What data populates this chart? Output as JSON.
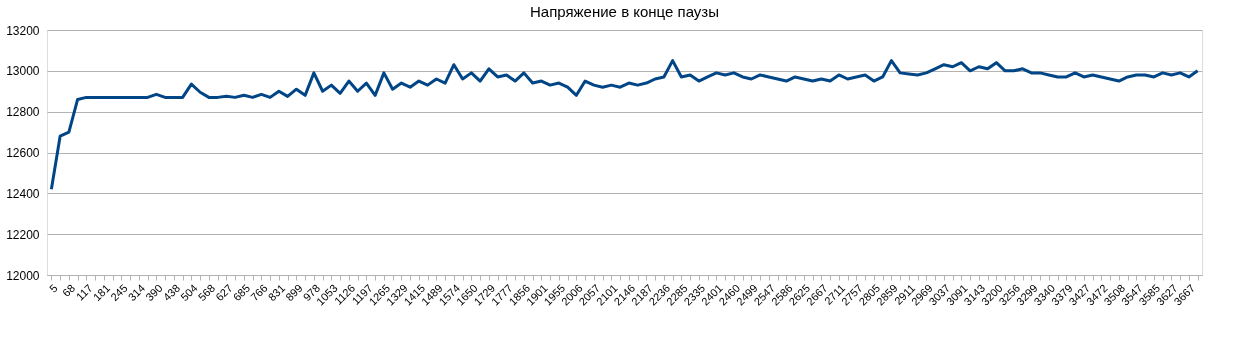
{
  "chart_data": {
    "type": "line",
    "title": "Напряжение в конце паузы",
    "categories": [
      "5",
      null,
      "68",
      null,
      "117",
      null,
      "181",
      null,
      "245",
      null,
      "314",
      null,
      "390",
      null,
      "438",
      null,
      "504",
      null,
      "568",
      null,
      "627",
      null,
      "685",
      null,
      "766",
      null,
      "831",
      null,
      "899",
      null,
      "978",
      null,
      "1053",
      null,
      "1126",
      null,
      "1197",
      null,
      "1265",
      null,
      "1329",
      null,
      "1415",
      null,
      "1489",
      null,
      "1574",
      null,
      "1650",
      null,
      "1729",
      null,
      "1777",
      null,
      "1856",
      null,
      "1901",
      null,
      "1955",
      null,
      "2006",
      null,
      "2057",
      null,
      "2101",
      null,
      "2146",
      null,
      "2187",
      null,
      "2236",
      null,
      "2285",
      null,
      "2335",
      null,
      "2401",
      null,
      "2460",
      null,
      "2499",
      null,
      "2547",
      null,
      "2586",
      null,
      "2625",
      null,
      "2667",
      null,
      "2711",
      null,
      "2757",
      null,
      "2805",
      null,
      "2859",
      null,
      "2911",
      null,
      "2969",
      null,
      "3037",
      null,
      "3091",
      null,
      "3143",
      null,
      "3200",
      null,
      "3256",
      null,
      "3299",
      null,
      "3340",
      null,
      "3379",
      null,
      "3427",
      null,
      "3472",
      null,
      "3508",
      null,
      "3547",
      null,
      "3585",
      null,
      "3627",
      null,
      "3667",
      null
    ],
    "series": [
      {
        "color": "#004586",
        "values": [
          12420,
          12680,
          12700,
          12860,
          12870,
          12870,
          12870,
          12870,
          12870,
          12870,
          12870,
          12870,
          12885,
          12870,
          12870,
          12870,
          12935,
          12895,
          12870,
          12870,
          12875,
          12870,
          12880,
          12870,
          12885,
          12870,
          12900,
          12875,
          12910,
          12880,
          12990,
          12900,
          12930,
          12890,
          12950,
          12900,
          12940,
          12880,
          12990,
          12910,
          12940,
          12920,
          12950,
          12930,
          12960,
          12940,
          13030,
          12960,
          12990,
          12950,
          13010,
          12970,
          12980,
          12950,
          12990,
          12940,
          12950,
          12930,
          12940,
          12920,
          12880,
          12950,
          12930,
          12920,
          12930,
          12920,
          12940,
          12930,
          12940,
          12960,
          12970,
          13050,
          12970,
          12980,
          12950,
          12970,
          12990,
          12980,
          12990,
          12970,
          12960,
          12980,
          12970,
          12960,
          12950,
          12970,
          12960,
          12950,
          12960,
          12950,
          12980,
          12960,
          12970,
          12980,
          12950,
          12970,
          13050,
          12990,
          12985,
          12980,
          12990,
          13010,
          13030,
          13020,
          13040,
          13000,
          13020,
          13010,
          13040,
          13000,
          13000,
          13010,
          12990,
          12990,
          12980,
          12970,
          12970,
          12990,
          12970,
          12980,
          12970,
          12960,
          12950,
          12970,
          12980,
          12980,
          12970,
          12990,
          12980,
          12990,
          12970,
          13000
        ]
      }
    ],
    "ylim": [
      12000,
      13200
    ],
    "yticks": [
      12000,
      12200,
      12400,
      12600,
      12800,
      13000,
      13200
    ],
    "grid": "y",
    "legend": false,
    "marker": "none",
    "line_style": "solid"
  }
}
